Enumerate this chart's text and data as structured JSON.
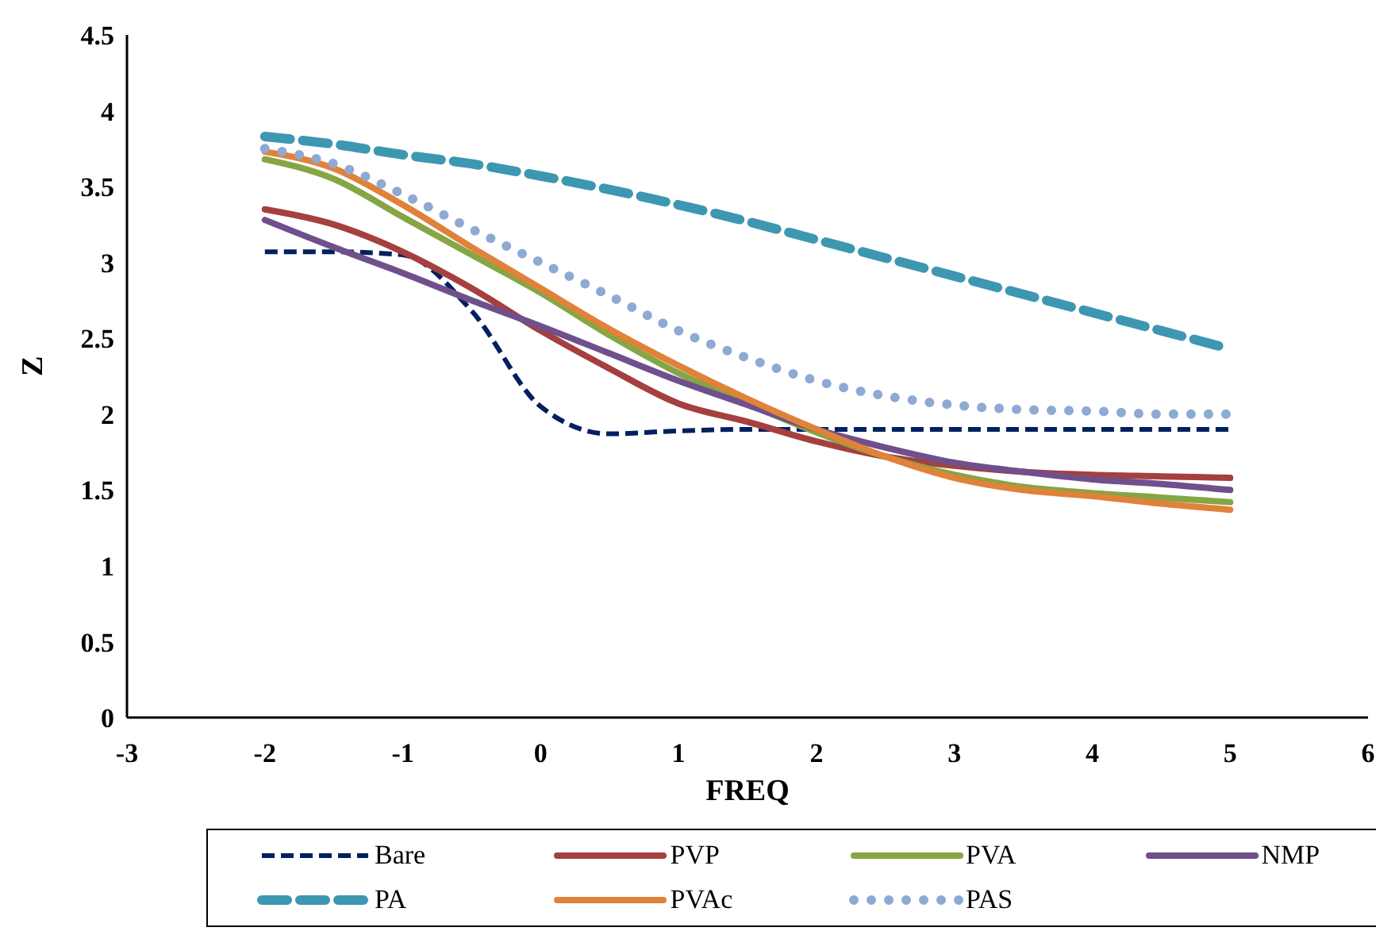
{
  "chart_data": {
    "type": "line",
    "xlabel": "FREQ",
    "ylabel": "Z",
    "xlim": [
      -3,
      6
    ],
    "xticks": [
      -3,
      -2,
      -1,
      0,
      1,
      2,
      3,
      4,
      5,
      6
    ],
    "ylim": [
      0,
      4.5
    ],
    "yticks": [
      0,
      0.5,
      1,
      1.5,
      2,
      2.5,
      3,
      3.5,
      4,
      4.5
    ],
    "grid": false,
    "legend": "bottom",
    "marker": "none",
    "x": [
      -2,
      -1.5,
      -1,
      -0.5,
      0,
      0.5,
      1,
      1.5,
      2,
      2.5,
      3,
      3.5,
      4,
      4.5,
      5
    ],
    "series": [
      {
        "name": "Bare",
        "color": "#002060",
        "line_style": "dashed",
        "values": [
          3.07,
          3.07,
          3.05,
          2.68,
          2.05,
          1.87,
          1.89,
          1.9,
          1.9,
          1.9,
          1.9,
          1.9,
          1.9,
          1.9,
          1.9
        ]
      },
      {
        "name": "PVP",
        "color": "#a5403e",
        "line_style": "solid",
        "values": [
          3.35,
          3.25,
          3.07,
          2.83,
          2.55,
          2.3,
          2.07,
          1.95,
          1.82,
          1.72,
          1.66,
          1.62,
          1.6,
          1.59,
          1.58
        ]
      },
      {
        "name": "PVA",
        "color": "#86a544",
        "line_style": "solid",
        "values": [
          3.68,
          3.55,
          3.3,
          3.05,
          2.8,
          2.52,
          2.27,
          2.07,
          1.88,
          1.72,
          1.6,
          1.52,
          1.48,
          1.45,
          1.42
        ]
      },
      {
        "name": "NMP",
        "color": "#6f508c",
        "line_style": "solid",
        "values": [
          3.28,
          3.1,
          2.93,
          2.75,
          2.58,
          2.4,
          2.22,
          2.06,
          1.9,
          1.78,
          1.68,
          1.62,
          1.57,
          1.54,
          1.5
        ]
      },
      {
        "name": "PA",
        "color": "#3e97b0",
        "line_style": "dashed",
        "values": [
          3.83,
          3.78,
          3.71,
          3.65,
          3.57,
          3.48,
          3.38,
          3.27,
          3.15,
          3.03,
          2.91,
          2.79,
          2.67,
          2.55,
          2.43
        ]
      },
      {
        "name": "PVAc",
        "color": "#e0823a",
        "line_style": "solid",
        "values": [
          3.73,
          3.62,
          3.38,
          3.1,
          2.83,
          2.56,
          2.32,
          2.1,
          1.9,
          1.72,
          1.58,
          1.5,
          1.46,
          1.41,
          1.37
        ]
      },
      {
        "name": "PAS",
        "color": "#8ea9d4",
        "line_style": "dotted",
        "values": [
          3.75,
          3.65,
          3.45,
          3.22,
          3.0,
          2.78,
          2.55,
          2.37,
          2.22,
          2.12,
          2.06,
          2.03,
          2.02,
          2.0,
          2.0
        ]
      }
    ]
  }
}
